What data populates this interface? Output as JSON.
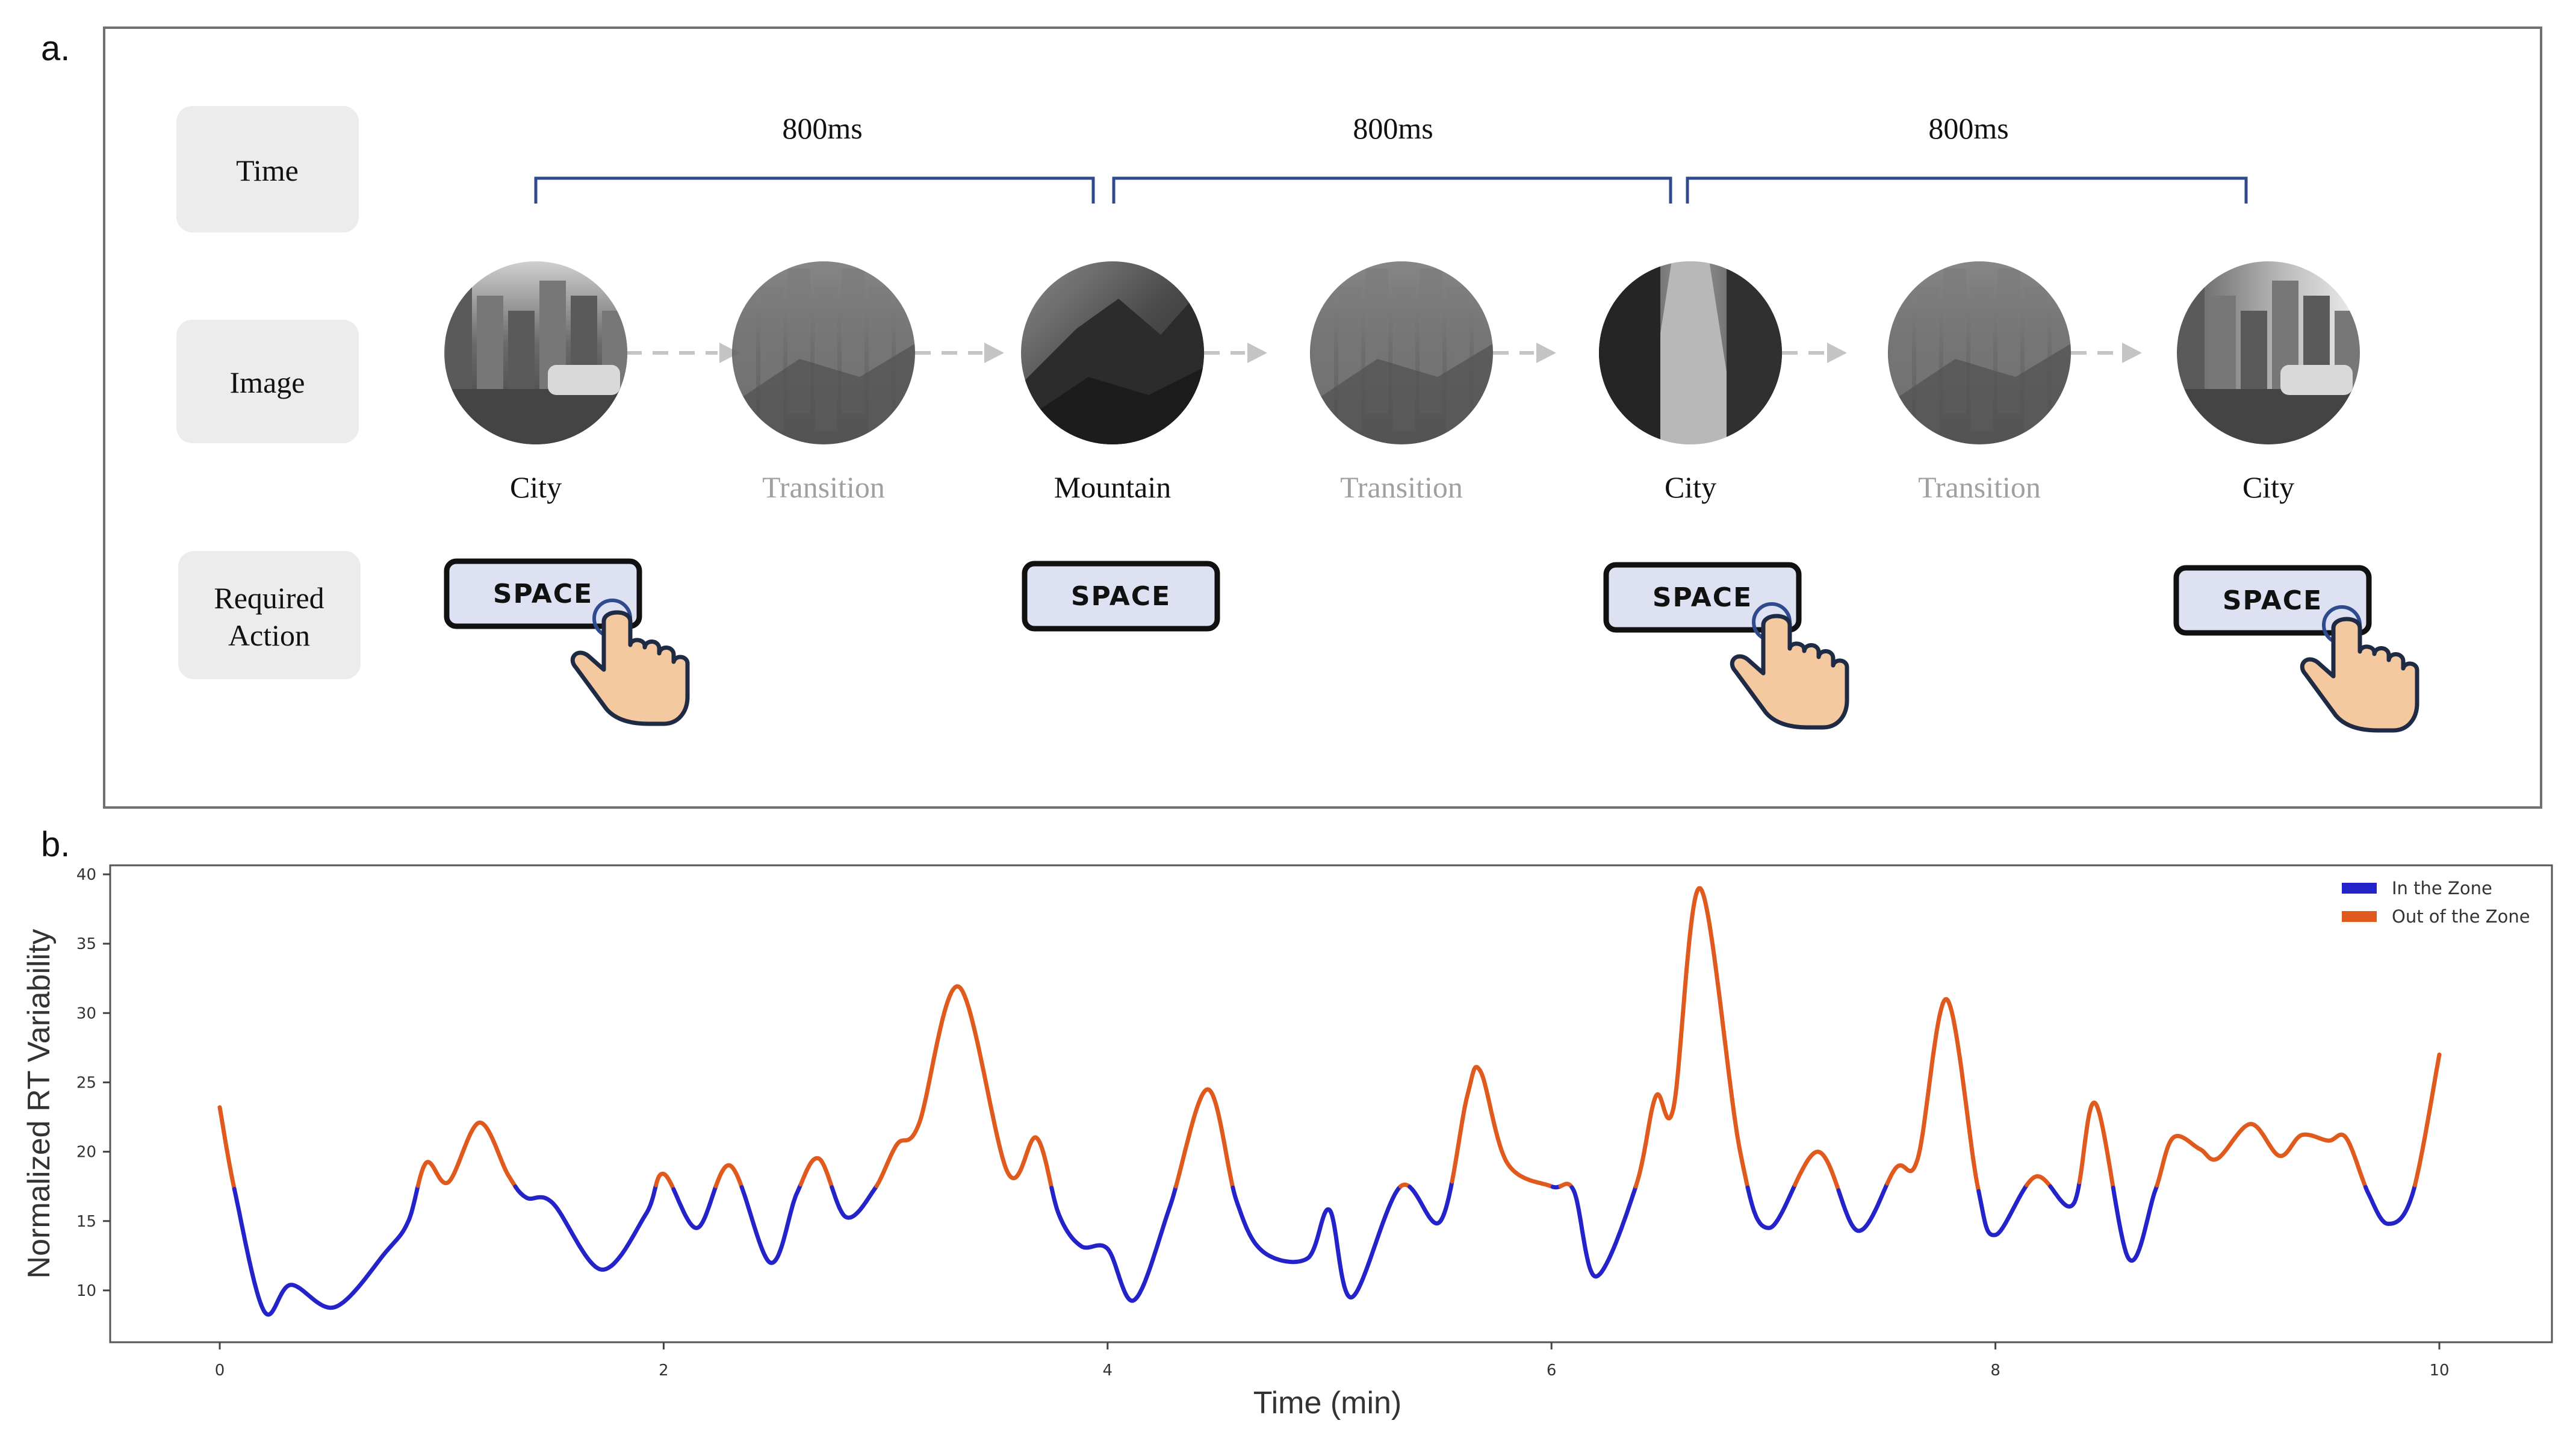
{
  "panel_a": {
    "label": "a.",
    "row_labels": {
      "time": "Time",
      "image": "Image",
      "action_line1": "Required",
      "action_line2": "Action"
    },
    "intervals": [
      "800ms",
      "800ms",
      "800ms"
    ],
    "sequence": [
      {
        "label": "City",
        "kind": "scene",
        "tone": "city"
      },
      {
        "label": "Transition",
        "kind": "transition",
        "tone": "mixed"
      },
      {
        "label": "Mountain",
        "kind": "scene",
        "tone": "mountain"
      },
      {
        "label": "Transition",
        "kind": "transition",
        "tone": "mixed"
      },
      {
        "label": "City",
        "kind": "scene",
        "tone": "alley"
      },
      {
        "label": "Transition",
        "kind": "transition",
        "tone": "mixed"
      },
      {
        "label": "City",
        "kind": "scene",
        "tone": "street"
      }
    ],
    "actions": [
      {
        "key": "SPACE",
        "pressed": true
      },
      {
        "key": "SPACE",
        "pressed": false
      },
      {
        "key": "SPACE",
        "pressed": true
      },
      {
        "key": "SPACE",
        "pressed": true
      }
    ],
    "colors": {
      "bracket": "#2f4b8e",
      "key_fill": "#dde1f2",
      "label_box": "#ececec",
      "transition_text": "#a0a0a0",
      "hand": "#f4c9a0"
    }
  },
  "panel_b": {
    "label": "b."
  },
  "chart_data": {
    "type": "line",
    "title": "",
    "xlabel": "Time (min)",
    "ylabel": "Normalized RT Variability",
    "xlim": [
      0,
      10
    ],
    "ylim": [
      7,
      40
    ],
    "xticks": [
      0,
      2,
      4,
      6,
      8,
      10
    ],
    "yticks": [
      10,
      15,
      20,
      25,
      30,
      35,
      40
    ],
    "threshold": 17.5,
    "legend_position": "top-right",
    "series": [
      {
        "name": "In the Zone",
        "color": "#2323c9",
        "rule": "value < 17.5"
      },
      {
        "name": "Out of the Zone",
        "color": "#e05a1e",
        "rule": "value >= 17.5"
      }
    ],
    "points": [
      [
        0,
        23.2
      ],
      [
        0.07,
        17
      ],
      [
        0.2,
        8.5
      ],
      [
        0.32,
        10.4
      ],
      [
        0.52,
        8.8
      ],
      [
        0.75,
        12.8
      ],
      [
        0.85,
        15
      ],
      [
        0.93,
        19.2
      ],
      [
        1.03,
        17.8
      ],
      [
        1.17,
        22.1
      ],
      [
        1.3,
        18.3
      ],
      [
        1.38,
        16.7
      ],
      [
        1.5,
        16.3
      ],
      [
        1.72,
        11.5
      ],
      [
        1.92,
        15.5
      ],
      [
        2.0,
        18.4
      ],
      [
        2.15,
        14.5
      ],
      [
        2.3,
        19
      ],
      [
        2.48,
        12
      ],
      [
        2.6,
        17
      ],
      [
        2.7,
        19.5
      ],
      [
        2.82,
        15.3
      ],
      [
        2.95,
        17.3
      ],
      [
        3.05,
        20.5
      ],
      [
        3.15,
        22
      ],
      [
        3.33,
        31.9
      ],
      [
        3.55,
        18.5
      ],
      [
        3.68,
        21
      ],
      [
        3.78,
        15.5
      ],
      [
        3.88,
        13.2
      ],
      [
        4.0,
        13
      ],
      [
        4.12,
        9.3
      ],
      [
        4.28,
        16
      ],
      [
        4.45,
        24.5
      ],
      [
        4.58,
        16.5
      ],
      [
        4.7,
        12.8
      ],
      [
        4.9,
        12.3
      ],
      [
        5.0,
        15.8
      ],
      [
        5.1,
        9.5
      ],
      [
        5.32,
        17.5
      ],
      [
        5.5,
        15
      ],
      [
        5.62,
        24
      ],
      [
        5.68,
        25.8
      ],
      [
        5.8,
        19.2
      ],
      [
        6.0,
        17.5
      ],
      [
        6.1,
        17.2
      ],
      [
        6.2,
        11
      ],
      [
        6.38,
        17.5
      ],
      [
        6.47,
        24
      ],
      [
        6.55,
        23.2
      ],
      [
        6.67,
        39
      ],
      [
        6.85,
        20
      ],
      [
        6.98,
        14.5
      ],
      [
        7.2,
        20
      ],
      [
        7.38,
        14.3
      ],
      [
        7.55,
        18.8
      ],
      [
        7.65,
        19.5
      ],
      [
        7.78,
        31
      ],
      [
        7.92,
        17.5
      ],
      [
        8.0,
        14
      ],
      [
        8.18,
        18.2
      ],
      [
        8.35,
        16.2
      ],
      [
        8.45,
        23.5
      ],
      [
        8.6,
        12.3
      ],
      [
        8.72,
        17.2
      ],
      [
        8.8,
        21
      ],
      [
        8.92,
        20.2
      ],
      [
        9.0,
        19.5
      ],
      [
        9.15,
        22
      ],
      [
        9.28,
        19.7
      ],
      [
        9.38,
        21.2
      ],
      [
        9.5,
        20.8
      ],
      [
        9.58,
        21
      ],
      [
        9.68,
        17
      ],
      [
        9.77,
        14.8
      ],
      [
        9.88,
        17
      ],
      [
        10.0,
        27
      ]
    ]
  }
}
